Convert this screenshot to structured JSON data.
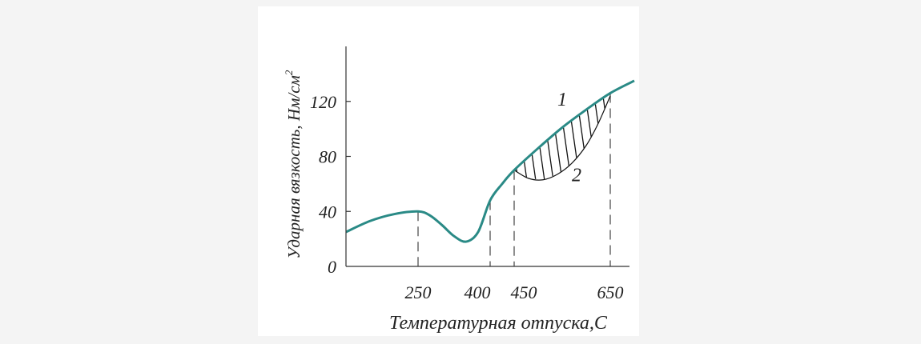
{
  "chart_data": {
    "type": "line",
    "ylabel": "Ударная вязкость, Нм/см",
    "ylabel_sup": "2",
    "xlabel": "Температурная отпуска,С",
    "x_ticks": [
      250,
      400,
      450,
      650
    ],
    "x_tick_labels": [
      "250",
      "400",
      "450",
      "650"
    ],
    "y_ticks": [
      0,
      40,
      80,
      120
    ],
    "y_tick_labels": [
      "0",
      "40",
      "80",
      "120"
    ],
    "xlim": [
      100,
      700
    ],
    "ylim": [
      0,
      160
    ],
    "grid": false,
    "series": [
      {
        "name": "1",
        "color": "#2a8a86",
        "x": [
          100,
          150,
          200,
          250,
          275,
          300,
          325,
          350,
          375,
          400,
          425,
          450,
          500,
          550,
          600,
          650,
          700
        ],
        "y": [
          25,
          33,
          38,
          40,
          37,
          30,
          22,
          18,
          25,
          48,
          60,
          70,
          86,
          101,
          114,
          126,
          135
        ]
      },
      {
        "name": "2",
        "x": [
          450,
          480,
          510,
          540,
          570,
          600,
          625,
          650
        ],
        "y": [
          70,
          64,
          63,
          67,
          75,
          88,
          104,
          124
        ]
      }
    ],
    "reference_lines_x": [
      250,
      400,
      450,
      650
    ],
    "shaded_region": {
      "between": [
        "1",
        "2"
      ],
      "x_range": [
        450,
        650
      ],
      "pattern": "hatch"
    },
    "annotations": [
      {
        "text": "1",
        "x": 540,
        "y": 117
      },
      {
        "text": "2",
        "x": 570,
        "y": 62
      }
    ]
  }
}
